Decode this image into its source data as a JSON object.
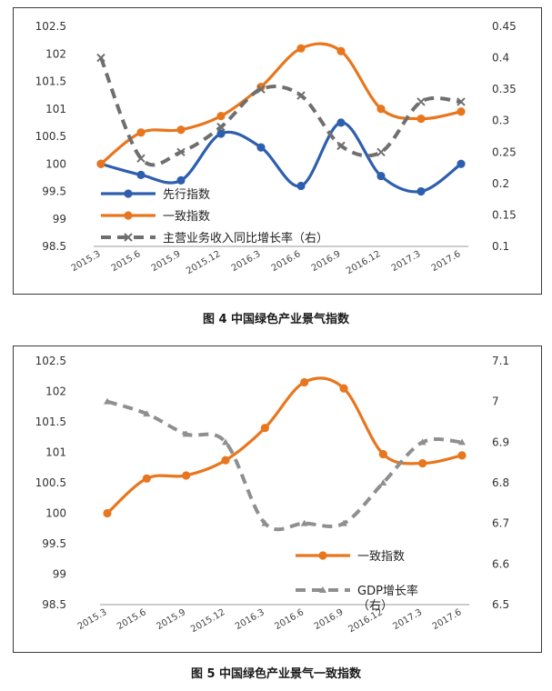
{
  "chart_data": [
    {
      "type": "line",
      "caption": "图 4  中国绿色产业景气指数",
      "categories": [
        "2015.3",
        "2015.6",
        "2015.9",
        "2015.12",
        "2016.3",
        "2016.6",
        "2016.9",
        "2016.12",
        "2017.3",
        "2017.6"
      ],
      "left_axis": {
        "min": 98.5,
        "max": 102.5,
        "step": 0.5,
        "ticks": [
          "98.5",
          "99",
          "99.5",
          "100",
          "100.5",
          "101",
          "101.5",
          "102",
          "102.5"
        ]
      },
      "right_axis": {
        "min": 0.1,
        "max": 0.45,
        "step": 0.05,
        "ticks": [
          "0.1",
          "0.15",
          "0.2",
          "0.25",
          "0.3",
          "0.35",
          "0.4",
          "0.45"
        ]
      },
      "series": [
        {
          "name": "先行指数",
          "axis": "left",
          "color": "#2e5fae",
          "style": "solid-dot",
          "values": [
            100.0,
            99.8,
            99.7,
            100.55,
            100.3,
            99.6,
            100.75,
            99.78,
            99.5,
            100.0
          ]
        },
        {
          "name": "一致指数",
          "axis": "left",
          "color": "#e8761e",
          "style": "solid-dot",
          "values": [
            100.0,
            100.57,
            100.62,
            100.87,
            101.4,
            102.1,
            102.05,
            101.0,
            100.82,
            100.95
          ]
        },
        {
          "name": "主营业务收入同比增长率（右）",
          "axis": "right",
          "color": "#6f6f6f",
          "style": "dash-x",
          "values": [
            0.4,
            0.24,
            0.25,
            0.29,
            0.35,
            0.34,
            0.26,
            0.25,
            0.33,
            0.33
          ]
        }
      ],
      "legend": "center-left"
    },
    {
      "type": "line",
      "caption": "图 5  中国绿色产业景气一致指数",
      "categories": [
        "2015.3",
        "2015.6",
        "2015.9",
        "2015.12",
        "2016.3",
        "2016.6",
        "2016.9",
        "2016.12",
        "2017.3",
        "2017.6"
      ],
      "left_axis": {
        "min": 98.5,
        "max": 102.5,
        "step": 0.5,
        "ticks": [
          "98.5",
          "99",
          "99.5",
          "100",
          "100.5",
          "101",
          "101.5",
          "102",
          "102.5"
        ]
      },
      "right_axis": {
        "min": 6.5,
        "max": 7.1,
        "step": 0.1,
        "ticks": [
          "6.5",
          "6.6",
          "6.7",
          "6.8",
          "6.9",
          "7",
          "7.1"
        ]
      },
      "series": [
        {
          "name": "一致指数",
          "axis": "left",
          "color": "#e8761e",
          "style": "solid-dot",
          "values": [
            100.0,
            100.57,
            100.62,
            100.87,
            101.4,
            102.15,
            102.05,
            100.97,
            100.82,
            100.95
          ]
        },
        {
          "name_lines": [
            "GDP增长率",
            "（右）"
          ],
          "axis": "right",
          "color": "#8f8f8f",
          "style": "dash-triangle",
          "values": [
            7.0,
            6.97,
            6.92,
            6.9,
            6.7,
            6.7,
            6.7,
            6.8,
            6.9,
            6.9
          ]
        }
      ],
      "legend": "bottom-right"
    }
  ]
}
